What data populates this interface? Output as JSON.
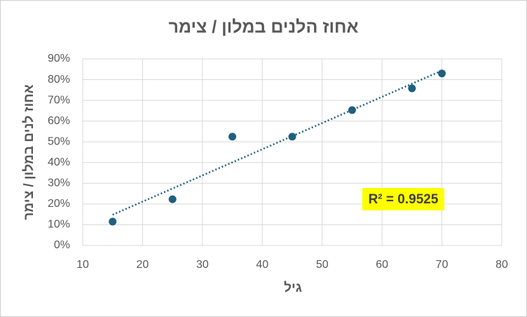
{
  "chart_data": {
    "type": "scatter",
    "title": "אחוז הלנים במלון / צימר",
    "x_label": "גיל",
    "y_label": "אחוז לנים במלון / צימר",
    "annotation": "R² = 0.9525",
    "series": [
      {
        "name": "אחוז הלנים במלון / צימר",
        "color": "#1f5f80",
        "x": [
          15,
          25,
          35,
          45,
          55,
          65,
          70
        ],
        "values": [
          11.5,
          22.3,
          52.5,
          52.5,
          65.3,
          75.8,
          83
        ]
      }
    ],
    "trendline": "linear",
    "trendline_color": "#1f5f80",
    "xlim": [
      10,
      80
    ],
    "xticks": [
      10,
      20,
      30,
      40,
      50,
      60,
      70,
      80
    ],
    "ylim": [
      0,
      90
    ],
    "yticks": [
      {
        "value": 0,
        "label": "0%"
      },
      {
        "value": 10,
        "label": "10%"
      },
      {
        "value": 20,
        "label": "20%"
      },
      {
        "value": 30,
        "label": "30%"
      },
      {
        "value": 40,
        "label": "40%"
      },
      {
        "value": 50,
        "label": "50%"
      },
      {
        "value": 60,
        "label": "60%"
      },
      {
        "value": 70,
        "label": "70%"
      },
      {
        "value": 80,
        "label": "80%"
      },
      {
        "value": 90,
        "label": "90%"
      }
    ],
    "grid": true
  }
}
